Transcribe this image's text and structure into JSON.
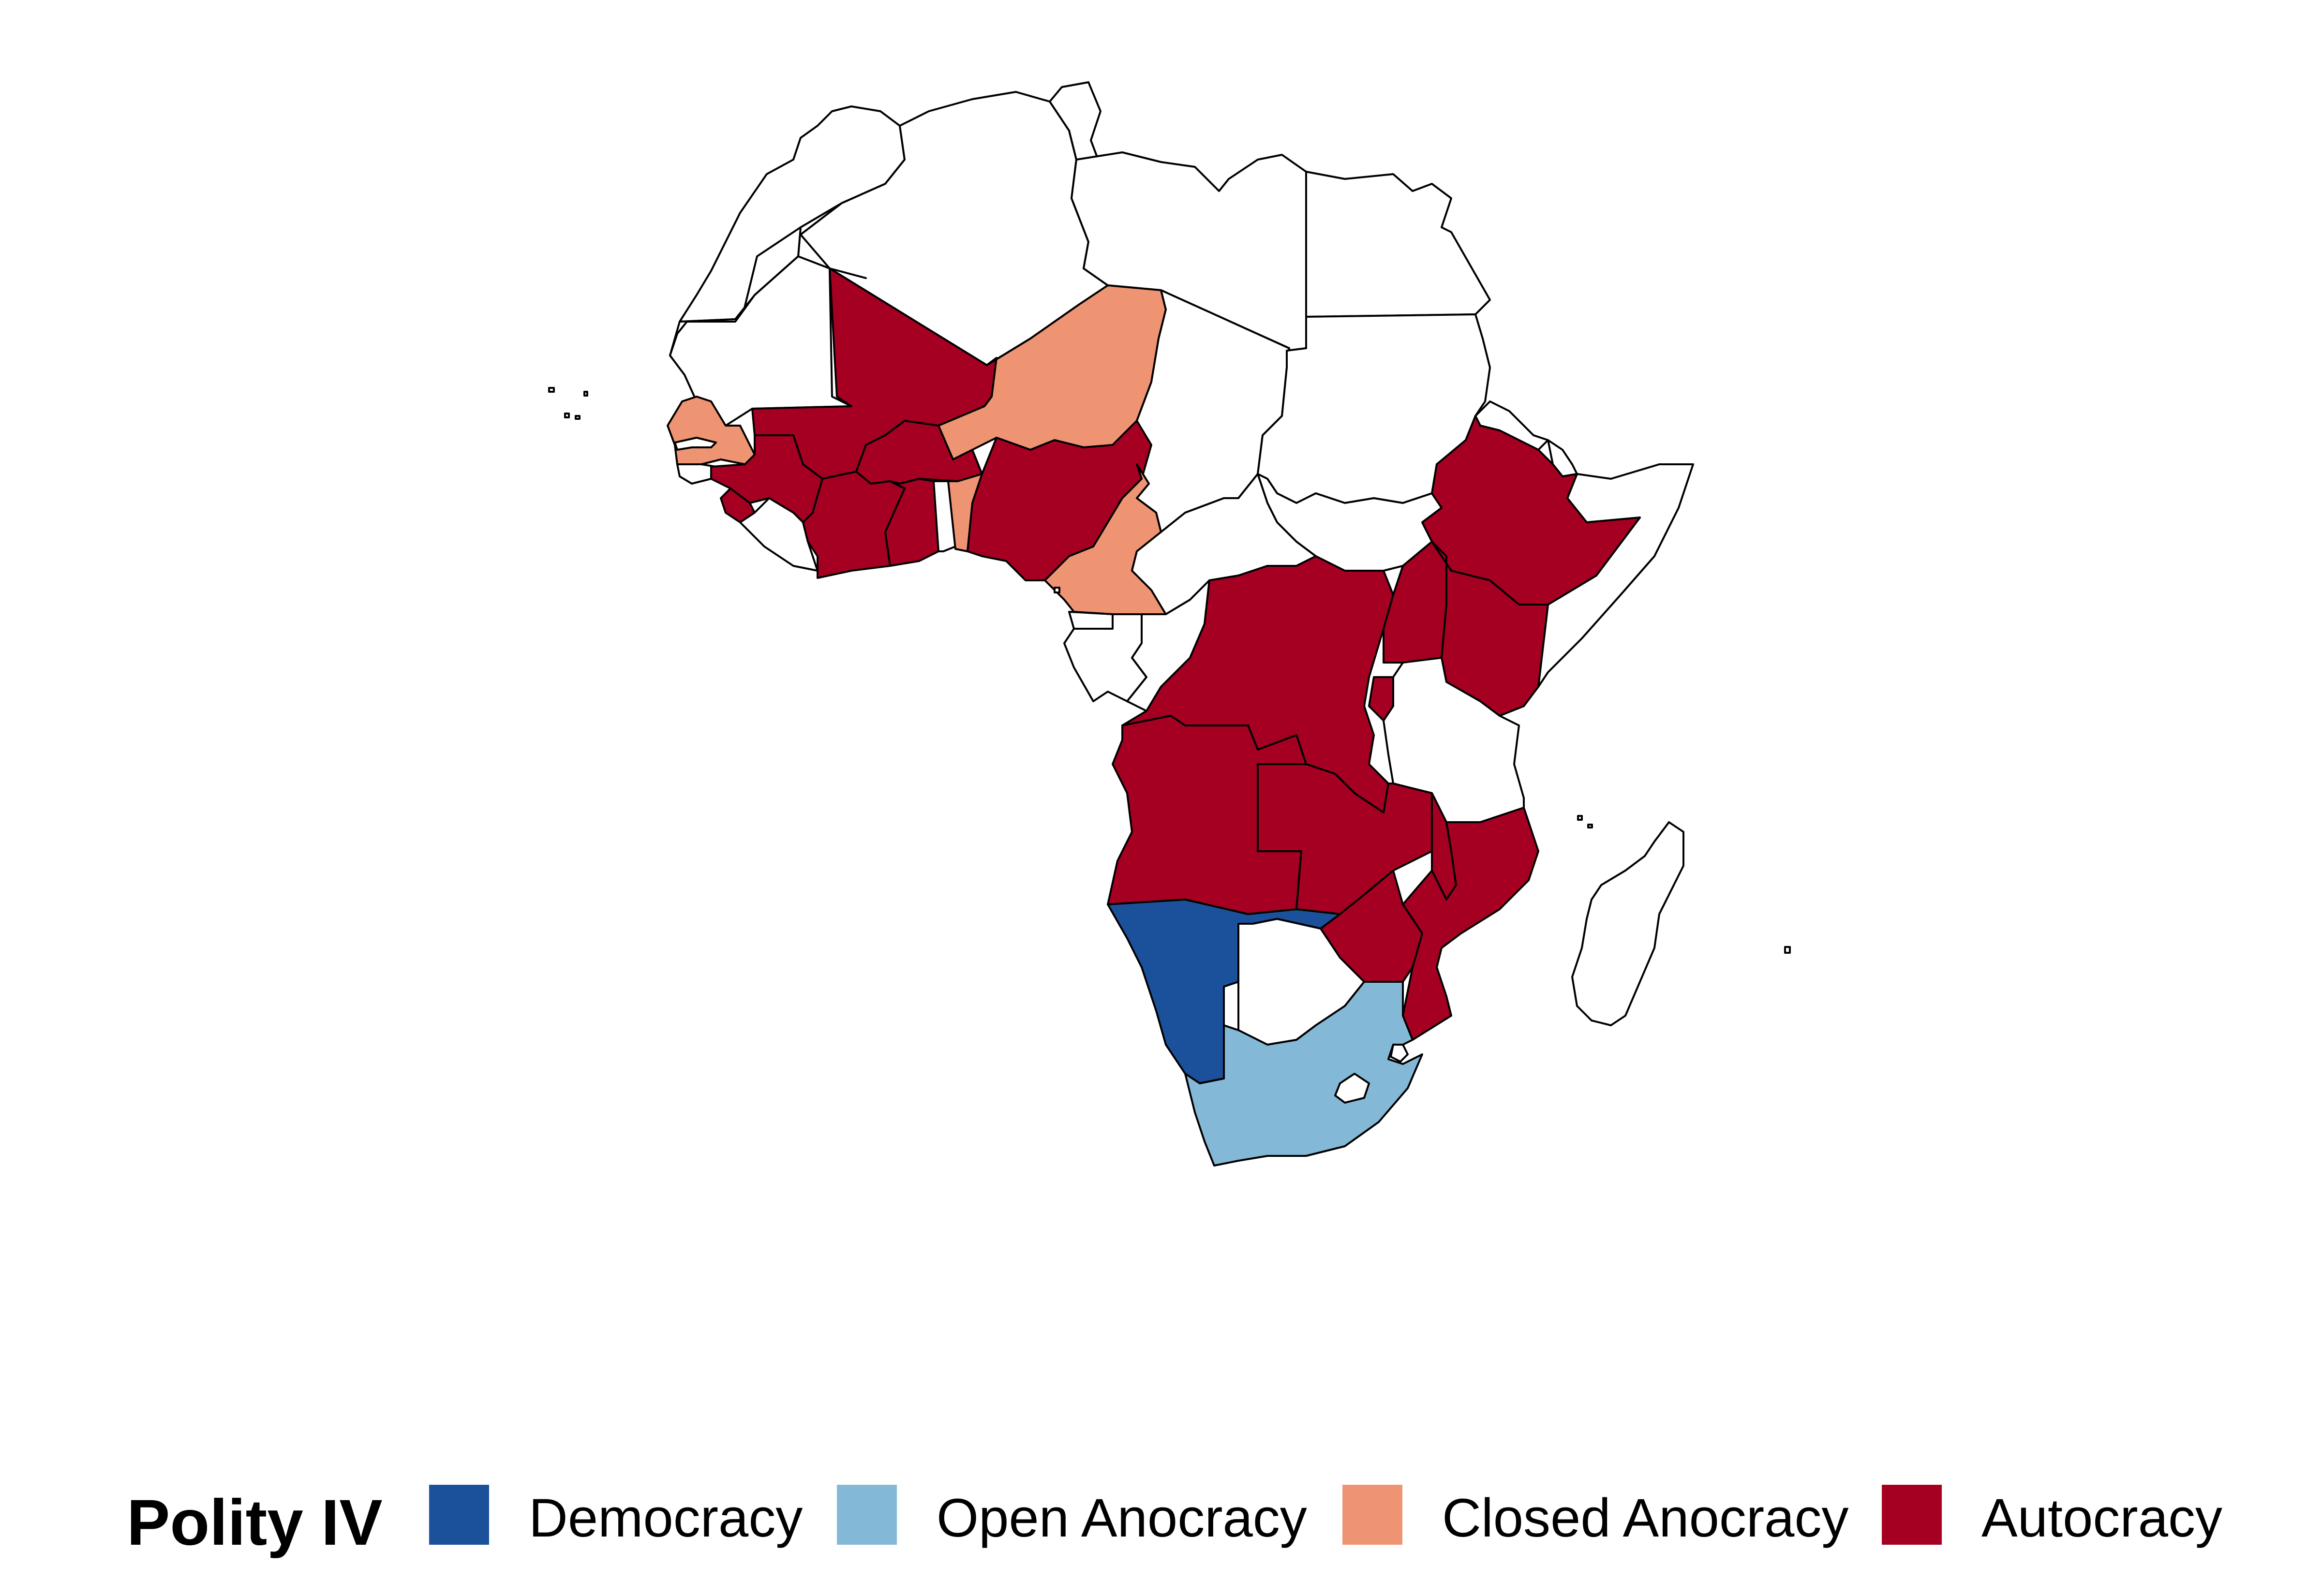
{
  "legend": {
    "title": "Polity IV",
    "items": [
      {
        "label": "Democracy",
        "color": "#1b509b"
      },
      {
        "label": "Open Anocracy",
        "color": "#84b8d7"
      },
      {
        "label": "Closed Anocracy",
        "color": "#ef9473"
      },
      {
        "label": "Autocracy",
        "color": "#a50022"
      }
    ]
  },
  "map": {
    "outline_color": "#000000",
    "no_data_color": "#ffffff",
    "regions": [
      {
        "name": "Morocco",
        "category": "none"
      },
      {
        "name": "Algeria",
        "category": "none"
      },
      {
        "name": "Tunisia",
        "category": "none"
      },
      {
        "name": "Libya",
        "category": "none"
      },
      {
        "name": "Egypt",
        "category": "none"
      },
      {
        "name": "Western Sahara",
        "category": "none"
      },
      {
        "name": "Mauritania",
        "category": "none"
      },
      {
        "name": "Mali",
        "category": "Autocracy"
      },
      {
        "name": "Niger",
        "category": "Closed Anocracy"
      },
      {
        "name": "Chad",
        "category": "none"
      },
      {
        "name": "Sudan",
        "category": "none"
      },
      {
        "name": "Senegal",
        "category": "Closed Anocracy"
      },
      {
        "name": "Guinea",
        "category": "Autocracy"
      },
      {
        "name": "Burkina Faso",
        "category": "Autocracy"
      },
      {
        "name": "Benin",
        "category": "Closed Anocracy"
      },
      {
        "name": "Nigeria",
        "category": "Autocracy"
      },
      {
        "name": "Ghana",
        "category": "Autocracy"
      },
      {
        "name": "Cote d'Ivoire",
        "category": "Autocracy"
      },
      {
        "name": "Liberia",
        "category": "none"
      },
      {
        "name": "Cameroon",
        "category": "Closed Anocracy"
      },
      {
        "name": "Central African Republic",
        "category": "none"
      },
      {
        "name": "Ethiopia",
        "category": "Autocracy"
      },
      {
        "name": "Somalia",
        "category": "none"
      },
      {
        "name": "Kenya",
        "category": "Autocracy"
      },
      {
        "name": "Uganda",
        "category": "Autocracy"
      },
      {
        "name": "DR Congo",
        "category": "Autocracy"
      },
      {
        "name": "Congo",
        "category": "none"
      },
      {
        "name": "Gabon",
        "category": "none"
      },
      {
        "name": "Tanzania",
        "category": "none"
      },
      {
        "name": "Angola",
        "category": "Autocracy"
      },
      {
        "name": "Zambia",
        "category": "Autocracy"
      },
      {
        "name": "Malawi",
        "category": "Autocracy"
      },
      {
        "name": "Mozambique",
        "category": "Autocracy"
      },
      {
        "name": "Zimbabwe",
        "category": "Autocracy"
      },
      {
        "name": "Namibia",
        "category": "Democracy"
      },
      {
        "name": "Botswana",
        "category": "none"
      },
      {
        "name": "South Africa",
        "category": "Open Anocracy"
      },
      {
        "name": "Lesotho",
        "category": "none"
      },
      {
        "name": "Madagascar",
        "category": "none"
      }
    ]
  }
}
